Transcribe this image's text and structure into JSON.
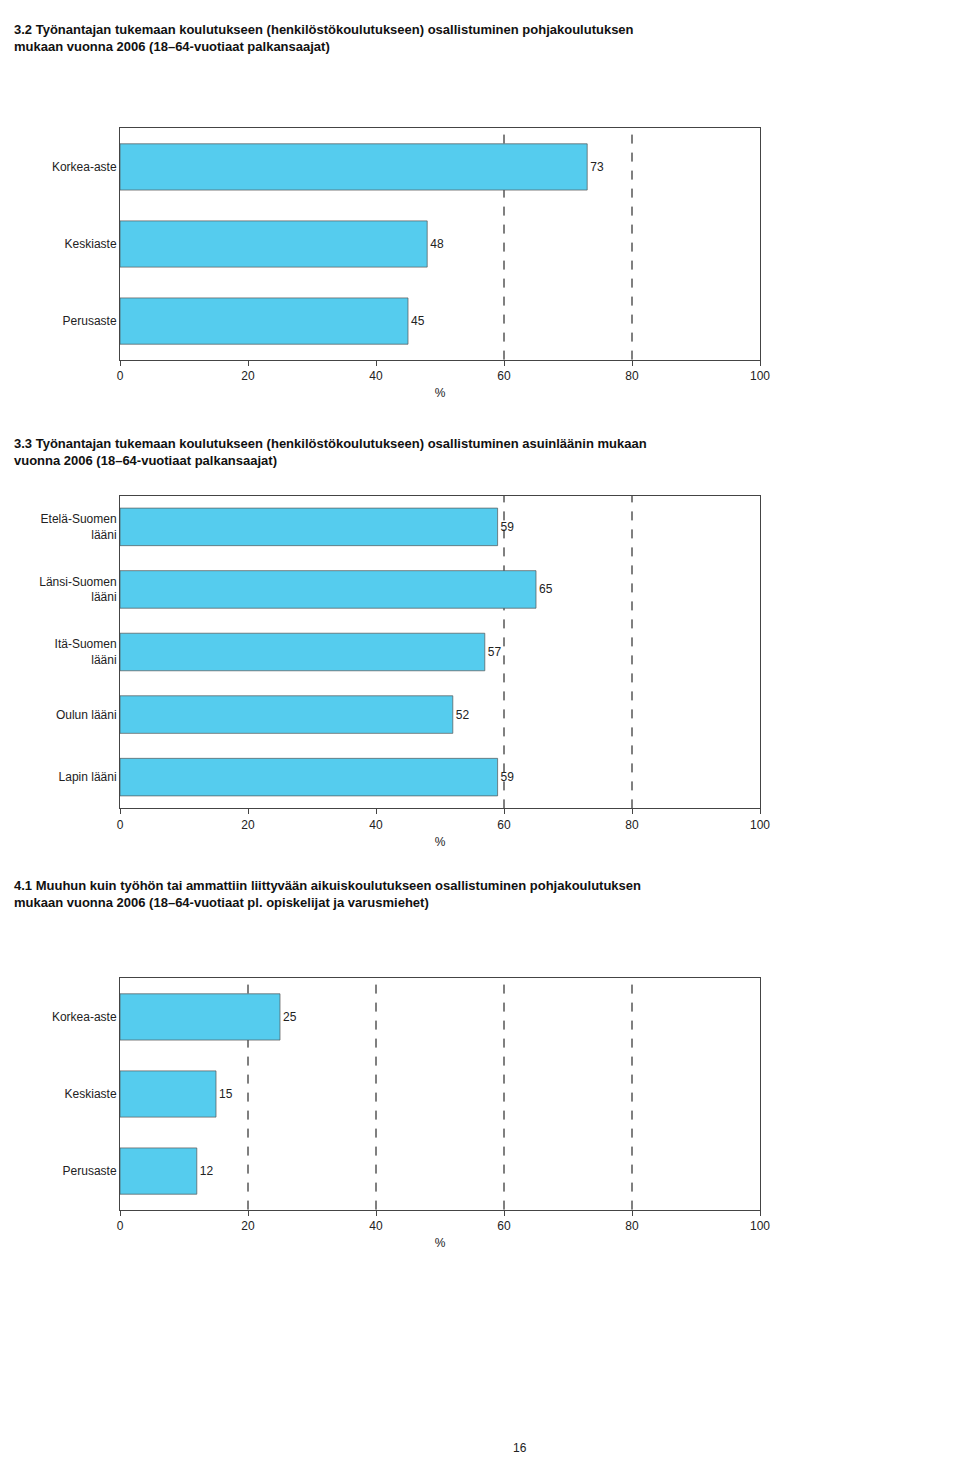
{
  "chart_data": [
    {
      "type": "bar",
      "orientation": "horizontal",
      "title": "3.2 Työnantajan tukemaan koulutukseen (henkilöstökoulutukseen) osallistuminen pohjakoulutuksen\nmukaan vuonna 2006 (18–64-vuotiaat palkansaajat)",
      "categories": [
        "Korkea-aste",
        "Keskiaste",
        "Perusaste"
      ],
      "values": [
        73,
        48,
        45
      ],
      "color": "#55CCEE",
      "xlim": [
        0,
        100
      ],
      "xticks": [
        0,
        20,
        40,
        60,
        80,
        100
      ],
      "xlabel": "%",
      "reference_lines": [
        60,
        80
      ],
      "data_labels": true,
      "grid": false
    },
    {
      "type": "bar",
      "orientation": "horizontal",
      "title": "3.3 Työnantajan tukemaan koulutukseen (henkilöstökoulutukseen) osallistuminen asuinläänin mukaan\nvuonna 2006 (18–64-vuotiaat palkansaajat)",
      "categories": [
        "Etelä-Suomen\nlääni",
        "Länsi-Suomen\nlääni",
        "Itä-Suomen\nlääni",
        "Oulun lääni",
        "Lapin lääni"
      ],
      "values": [
        59,
        65,
        57,
        52,
        59
      ],
      "color": "#55CCEE",
      "xlim": [
        0,
        100
      ],
      "xticks": [
        0,
        20,
        40,
        60,
        80,
        100
      ],
      "xlabel": "%",
      "reference_lines": [
        60,
        80
      ],
      "data_labels": true,
      "grid": false
    },
    {
      "type": "bar",
      "orientation": "horizontal",
      "title": "4.1 Muuhun kuin työhön tai ammattiin liittyvään aikuiskoulutukseen osallistuminen pohjakoulutuksen\nmukaan vuonna 2006 (18–64-vuotiaat pl. opiskelijat ja varusmiehet)",
      "categories": [
        "Korkea-aste",
        "Keskiaste",
        "Perusaste"
      ],
      "values": [
        25,
        15,
        12
      ],
      "color": "#55CCEE",
      "xlim": [
        0,
        100
      ],
      "xticks": [
        0,
        20,
        40,
        60,
        80,
        100
      ],
      "xlabel": "%",
      "reference_lines": [
        20,
        40,
        60,
        80
      ],
      "data_labels": true,
      "grid": false,
      "annotations": [
        "16"
      ]
    }
  ]
}
